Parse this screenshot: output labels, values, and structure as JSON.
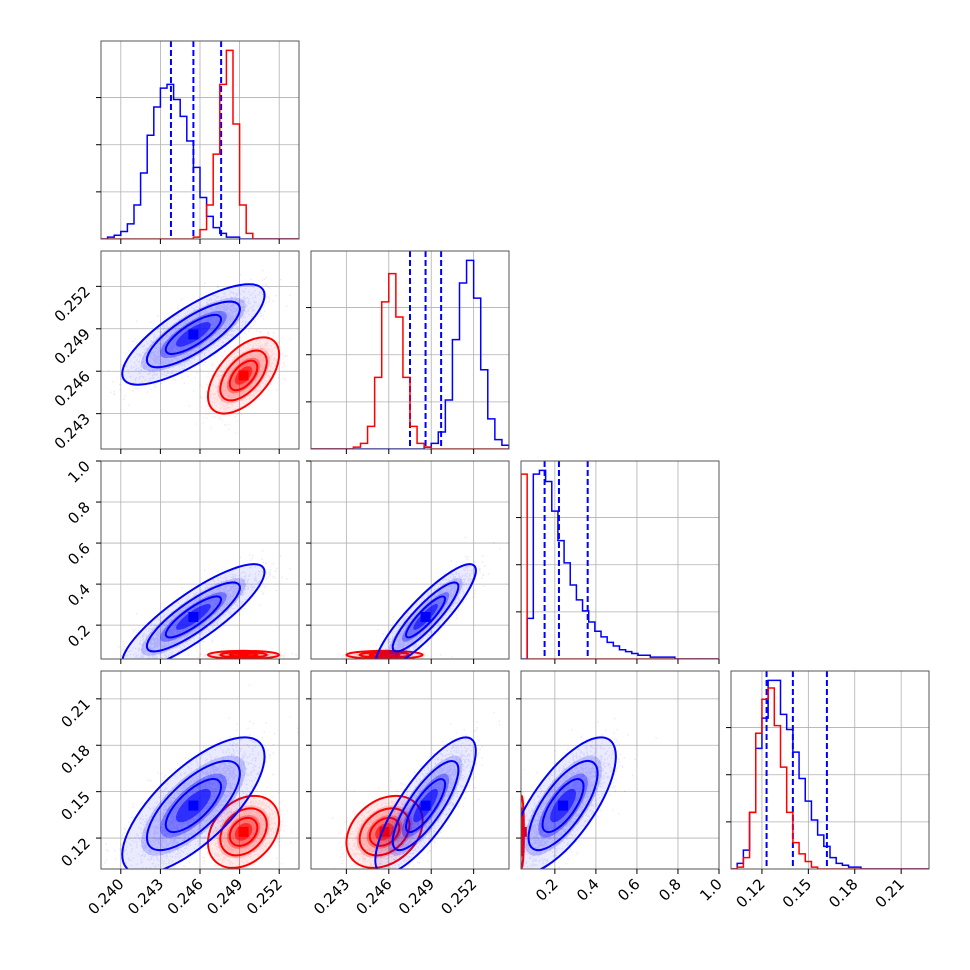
{
  "chart_data": {
    "type": "corner",
    "variables": [
      {
        "range": [
          0.2385,
          0.2535
        ],
        "ticks": [
          0.24,
          0.243,
          0.246,
          0.249,
          0.252
        ],
        "tick_labels": [
          "0.240",
          "0.243",
          "0.246",
          "0.249",
          "0.252"
        ]
      },
      {
        "range": [
          0.2405,
          0.2545
        ],
        "ticks": [
          0.243,
          0.246,
          0.249,
          0.252
        ],
        "tick_labels": [
          "0.243",
          "0.246",
          "0.249",
          "0.252"
        ]
      },
      {
        "range": [
          0.035,
          1.0
        ],
        "ticks": [
          0.2,
          0.4,
          0.6,
          0.8,
          1.0
        ],
        "tick_labels": [
          "0.2",
          "0.4",
          "0.6",
          "0.8",
          "1.0"
        ]
      },
      {
        "range": [
          0.1,
          0.228
        ],
        "ticks": [
          0.12,
          0.15,
          0.18,
          0.21
        ],
        "tick_labels": [
          "0.12",
          "0.15",
          "0.18",
          "0.21"
        ]
      }
    ],
    "y_labels_rows": [
      {
        "row": 1,
        "ticks": [
          0.243,
          0.246,
          0.249,
          0.252
        ],
        "tick_labels": [
          "0.243",
          "0.246",
          "0.249",
          "0.252"
        ]
      },
      {
        "row": 2,
        "ticks": [
          0.2,
          0.4,
          0.6,
          0.8,
          1.0
        ],
        "tick_labels": [
          "0.2",
          "0.4",
          "0.6",
          "0.8",
          "1.0"
        ]
      },
      {
        "row": 3,
        "ticks": [
          0.12,
          0.15,
          0.18,
          0.21
        ],
        "tick_labels": [
          "0.12",
          "0.15",
          "0.18",
          "0.21"
        ]
      }
    ],
    "series": [
      {
        "color": "#0000ff",
        "quantiles": [
          [
            0.2438,
            0.2455,
            0.2476
          ],
          [
            0.2475,
            0.2486,
            0.2497
          ],
          [
            0.15,
            0.22,
            0.36
          ],
          [
            0.123,
            0.14,
            0.162
          ]
        ],
        "marginals": [
          {
            "edges_start": 0.2385,
            "edges_step": 0.0005,
            "counts": [
              0,
              1,
              2,
              4,
              8,
              18,
              35,
              55,
              70,
              80,
              82,
              74,
              65,
              52,
              38,
              22,
              12,
              6,
              3,
              1,
              1,
              0,
              0,
              0,
              0,
              0,
              0,
              0,
              0,
              0
            ]
          },
          {
            "edges_start": 0.2405,
            "edges_step": 0.0005,
            "counts": [
              0,
              0,
              0,
              0,
              0,
              0,
              0,
              0,
              0,
              0,
              0,
              0,
              0,
              0,
              0,
              0,
              1,
              3,
              9,
              26,
              58,
              88,
              100,
              80,
              42,
              16,
              5,
              2,
              0,
              0
            ]
          },
          {
            "edges_start": 0.035,
            "edges_step": 0.03,
            "counts": [
              0,
              22,
              100,
              102,
              96,
              80,
              64,
              52,
              40,
              32,
              26,
              20,
              15,
              12,
              9,
              7,
              5,
              4,
              3,
              2,
              2,
              1,
              1,
              1,
              1,
              0,
              0,
              0,
              0,
              0,
              0,
              0,
              0
            ]
          },
          {
            "edges_start": 0.1,
            "edges_step": 0.004,
            "counts": [
              0,
              3,
              10,
              30,
              64,
              80,
              100,
              100,
              82,
              74,
              62,
              48,
              36,
              26,
              18,
              12,
              6,
              3,
              2,
              1,
              1,
              0,
              0,
              0,
              0,
              0,
              0,
              0,
              0,
              0,
              0,
              0
            ]
          }
        ],
        "dists": [
          {
            "mx": 0.2455,
            "my": 0.2486,
            "sx": 0.0022,
            "sy": 0.00145,
            "rho": 0.78,
            "n": 2400
          },
          {
            "mx": 0.2455,
            "my": 0.24,
            "sx": 0.0022,
            "sy": 0.105,
            "rho": 0.85,
            "n": 2400
          },
          {
            "mx": 0.2486,
            "my": 0.24,
            "sx": 0.00145,
            "sy": 0.105,
            "rho": 0.88,
            "n": 2400
          },
          {
            "mx": 0.2455,
            "my": 0.141,
            "sx": 0.0022,
            "sy": 0.018,
            "rho": 0.72,
            "n": 2400
          },
          {
            "mx": 0.2486,
            "my": 0.141,
            "sx": 0.00145,
            "sy": 0.018,
            "rho": 0.8,
            "n": 2400
          },
          {
            "mx": 0.24,
            "my": 0.141,
            "sx": 0.105,
            "sy": 0.018,
            "rho": 0.72,
            "n": 2400
          }
        ]
      },
      {
        "color": "#ff0000",
        "quantiles": [],
        "marginals": [
          {
            "edges_start": 0.2385,
            "edges_step": 0.0005,
            "counts": [
              0,
              0,
              0,
              0,
              0,
              0,
              0,
              0,
              0,
              0,
              0,
              0,
              0,
              0,
              1,
              5,
              18,
              45,
              82,
              100,
              61,
              18,
              3,
              0,
              0,
              0,
              0,
              0,
              0,
              0
            ]
          },
          {
            "edges_start": 0.2405,
            "edges_step": 0.0005,
            "counts": [
              0,
              0,
              0,
              0,
              0,
              0,
              1,
              3,
              12,
              38,
              78,
              93,
              70,
              38,
              12,
              3,
              1,
              0,
              0,
              0,
              0,
              0,
              0,
              0,
              0,
              0,
              0,
              0,
              0,
              0
            ]
          },
          {
            "edges_start": 0.035,
            "edges_step": 0.03,
            "counts": [
              100,
              0,
              0,
              0,
              0,
              0,
              0,
              0,
              0,
              0,
              0,
              0,
              0,
              0,
              0,
              0,
              0,
              0,
              0,
              0,
              0,
              0,
              0,
              0,
              0,
              0,
              0,
              0,
              0,
              0,
              0,
              0,
              0
            ]
          },
          {
            "edges_start": 0.1,
            "edges_step": 0.004,
            "counts": [
              0,
              1,
              6,
              30,
              72,
              90,
              96,
              76,
              54,
              30,
              14,
              8,
              4,
              1,
              0,
              0,
              0,
              0,
              0,
              0,
              0,
              0,
              0,
              0,
              0,
              0,
              0,
              0,
              0,
              0,
              0,
              0
            ]
          }
        ],
        "dists": [
          {
            "mx": 0.2493,
            "my": 0.2457,
            "sx": 0.0011,
            "sy": 0.0011,
            "rho": 0.55,
            "n": 2000
          },
          {
            "mx": 0.2493,
            "my": 0.055,
            "sx": 0.0011,
            "sy": 0.008,
            "rho": 0,
            "n": 1600
          },
          {
            "mx": 0.2457,
            "my": 0.055,
            "sx": 0.0011,
            "sy": 0.008,
            "rho": 0,
            "n": 1600
          },
          {
            "mx": 0.2493,
            "my": 0.124,
            "sx": 0.0011,
            "sy": 0.0095,
            "rho": 0.3,
            "n": 2000
          },
          {
            "mx": 0.2457,
            "my": 0.124,
            "sx": 0.0011,
            "sy": 0.0095,
            "rho": 0.3,
            "n": 2000
          },
          {
            "mx": 0.039,
            "my": 0.124,
            "sx": 0.004,
            "sy": 0.0095,
            "rho": 0,
            "n": 1400
          }
        ]
      }
    ],
    "grid": true
  }
}
